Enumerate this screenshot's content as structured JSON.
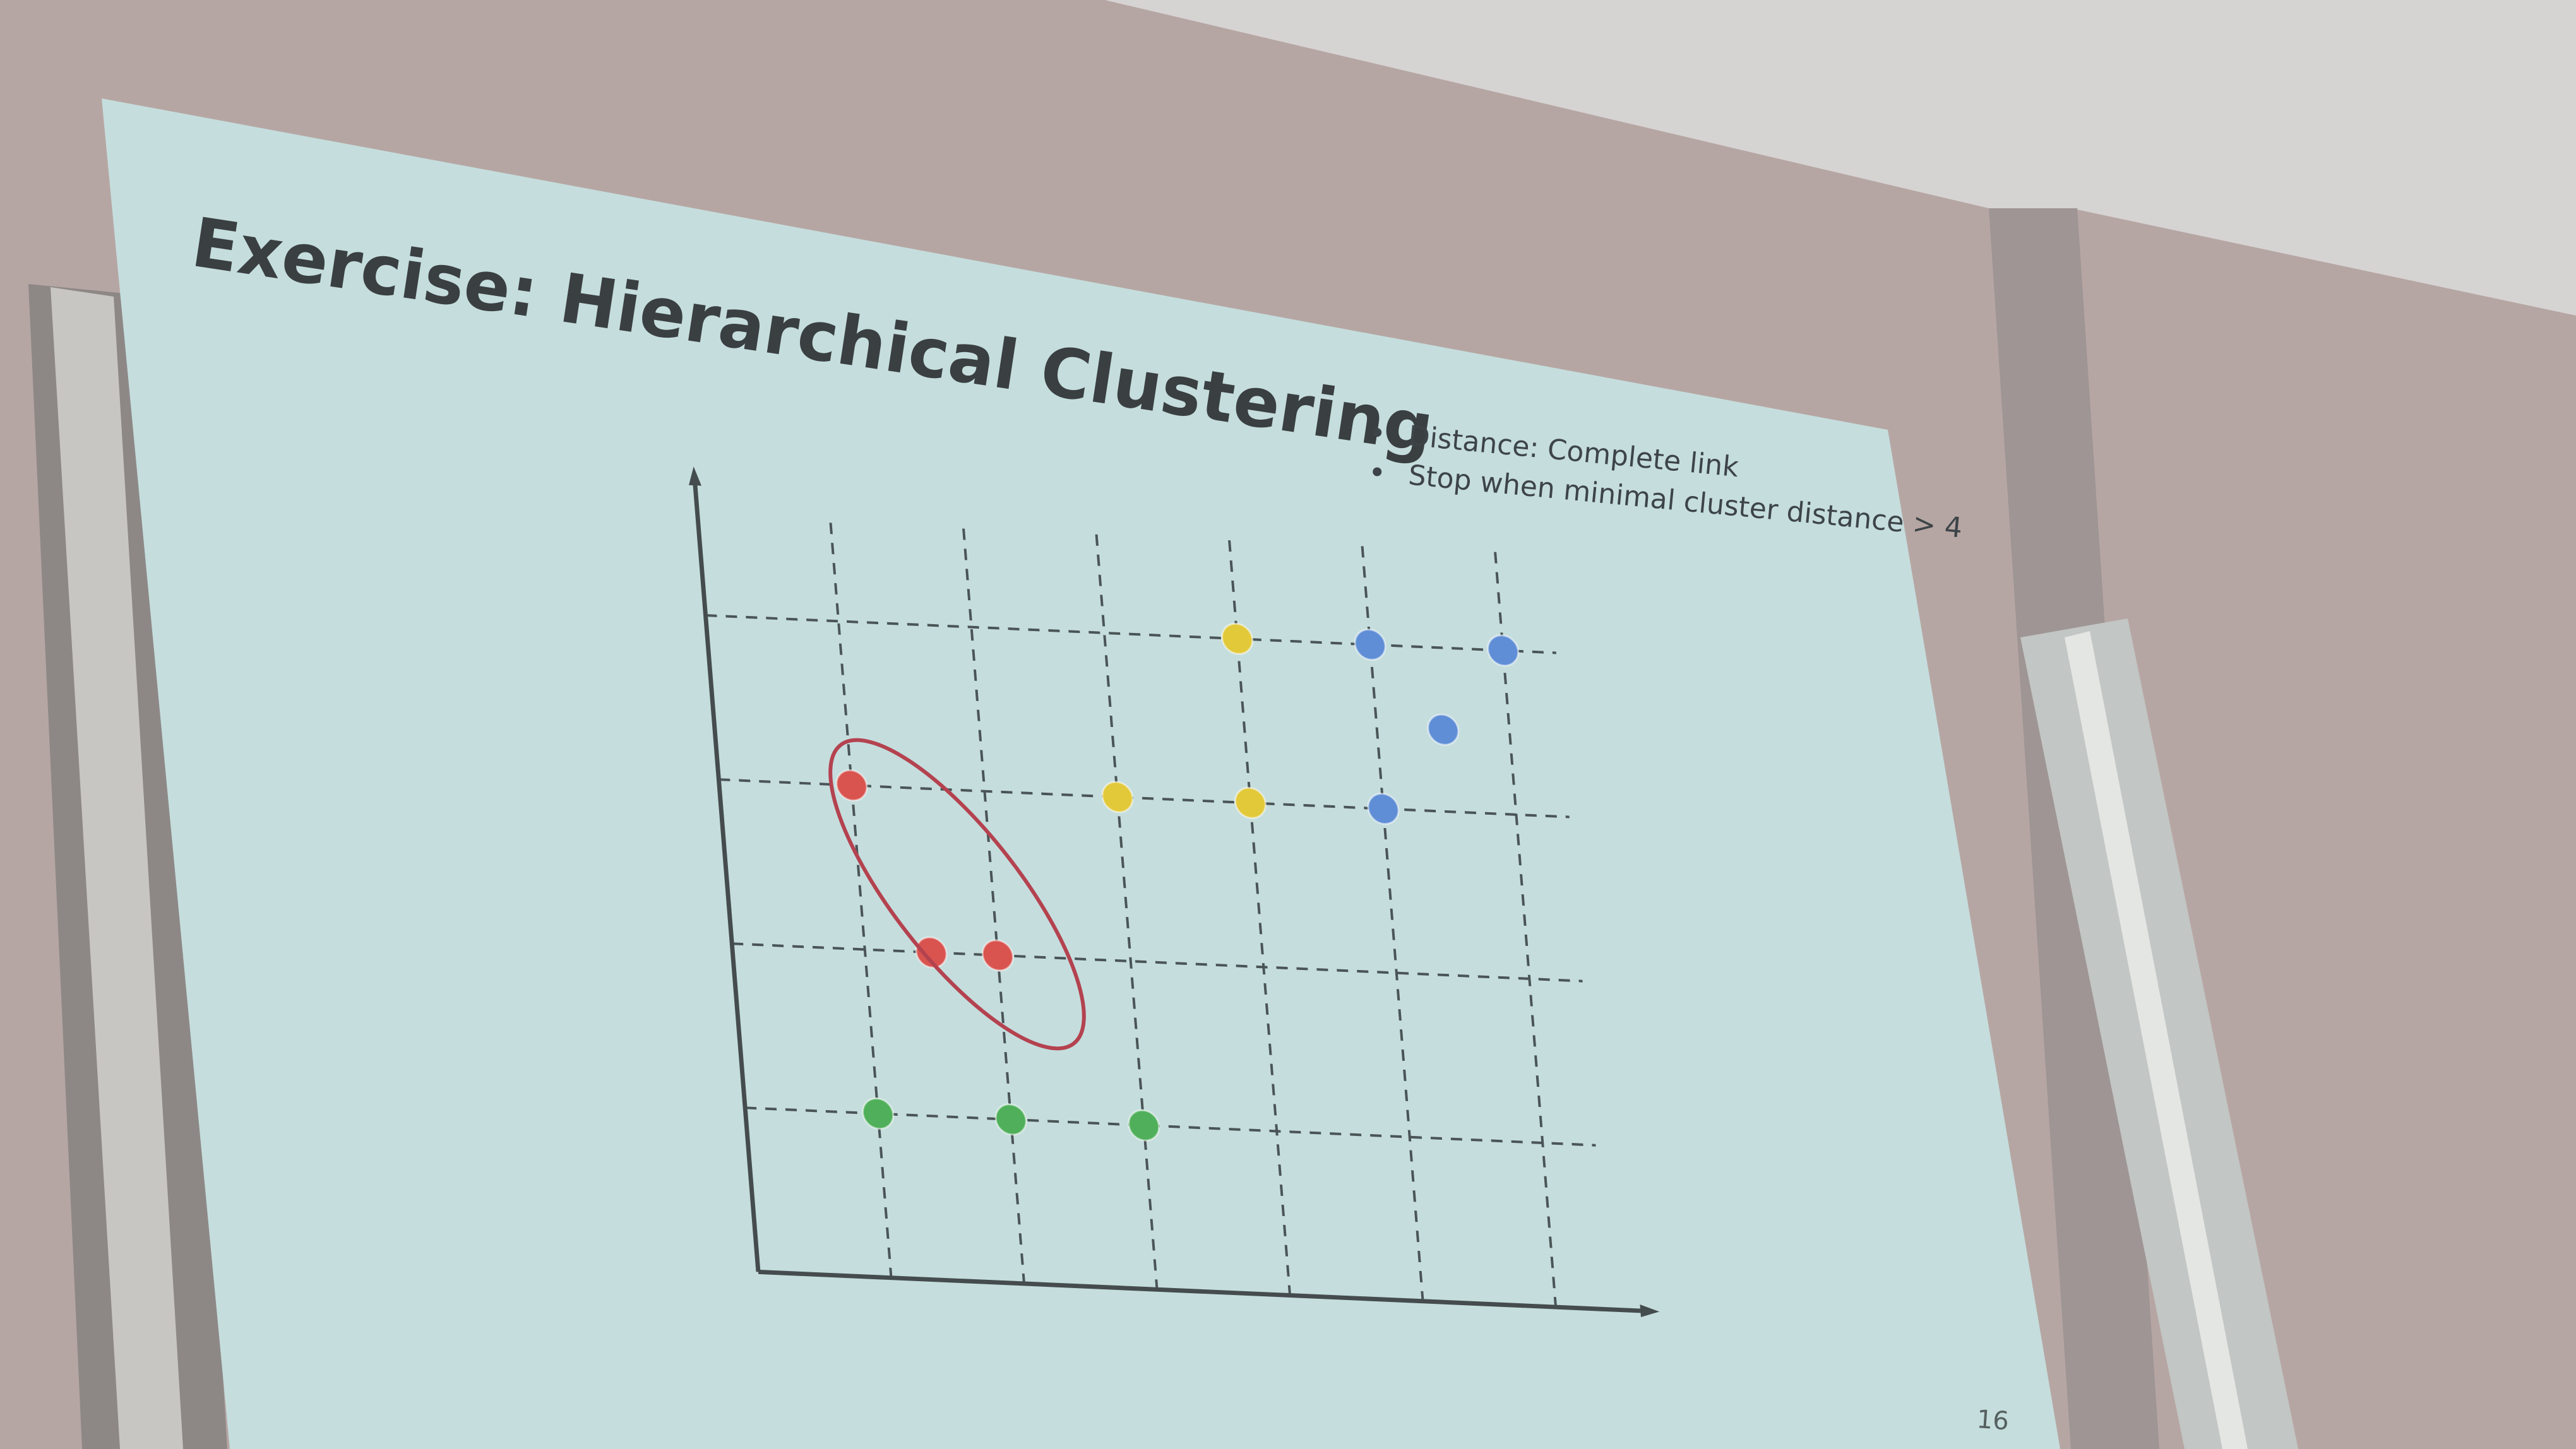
{
  "chart_data": {
    "type": "scatter",
    "title": "Exercise: Hierarchical Clustering",
    "annotations": [
      "Distance: Complete link",
      "Stop when minimal cluster distance > 4"
    ],
    "page_number": "16",
    "xlim": [
      0,
      6.4
    ],
    "ylim": [
      0,
      4.6
    ],
    "xticks": [
      1,
      2,
      3,
      4,
      5,
      6
    ],
    "yticks": [
      1,
      2,
      3,
      4
    ],
    "grid": true,
    "series": [
      {
        "color": "#d9544f",
        "x": [
          1,
          1.5,
          2
        ],
        "values": [
          3,
          2,
          2
        ]
      },
      {
        "color": "#4faf5a",
        "x": [
          1,
          2,
          3
        ],
        "values": [
          1,
          1,
          1
        ]
      },
      {
        "color": "#e2c93a",
        "x": [
          4,
          3,
          4
        ],
        "values": [
          4,
          3,
          3
        ]
      },
      {
        "color": "#5f8ed6",
        "x": [
          5,
          6,
          5.5,
          5
        ],
        "values": [
          4,
          4,
          3.5,
          3
        ]
      }
    ]
  }
}
